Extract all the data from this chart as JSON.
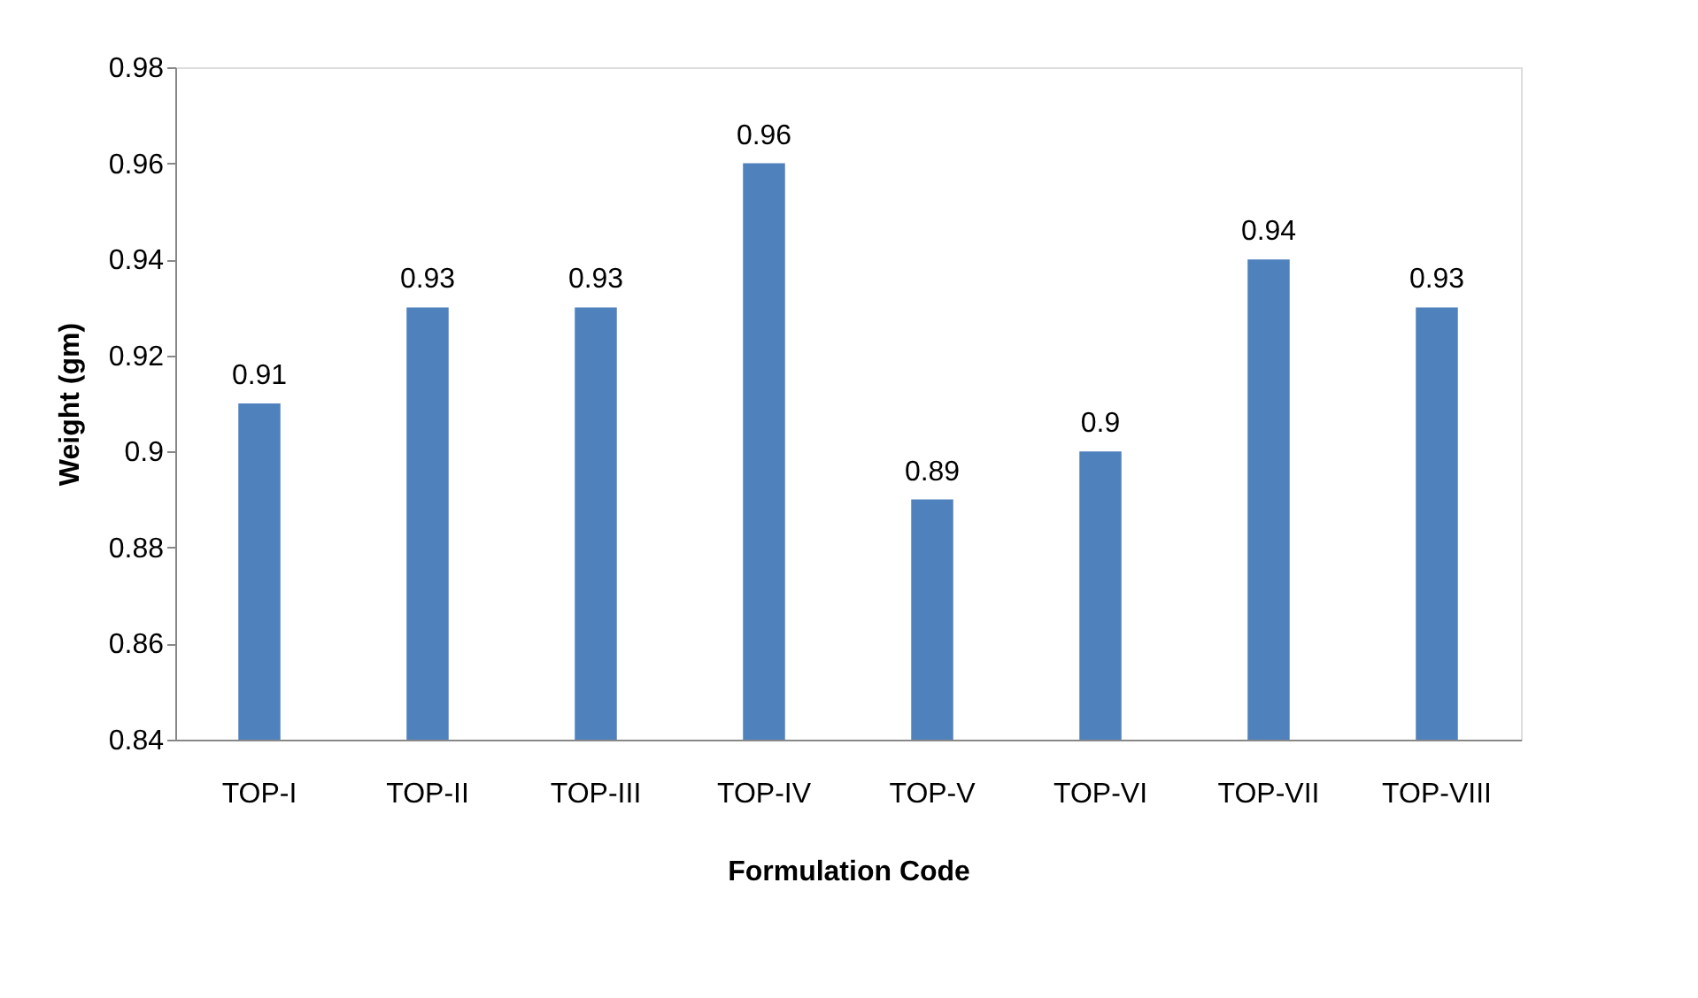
{
  "chart_data": {
    "type": "bar",
    "xlabel": "Formulation Code",
    "ylabel": "Weight (gm)",
    "categories": [
      "TOP-I",
      "TOP-II",
      "TOP-III",
      "TOP-IV",
      "TOP-V",
      "TOP-VI",
      "TOP-VII",
      "TOP-VIII"
    ],
    "values": [
      0.91,
      0.93,
      0.93,
      0.96,
      0.89,
      0.9,
      0.94,
      0.93
    ],
    "color": "#4f81bd",
    "ylim": [
      0.84,
      0.98
    ],
    "yticks": [
      0.84,
      0.86,
      0.88,
      0.9,
      0.92,
      0.94,
      0.96,
      0.98
    ],
    "grid": false,
    "data_labels": true
  }
}
